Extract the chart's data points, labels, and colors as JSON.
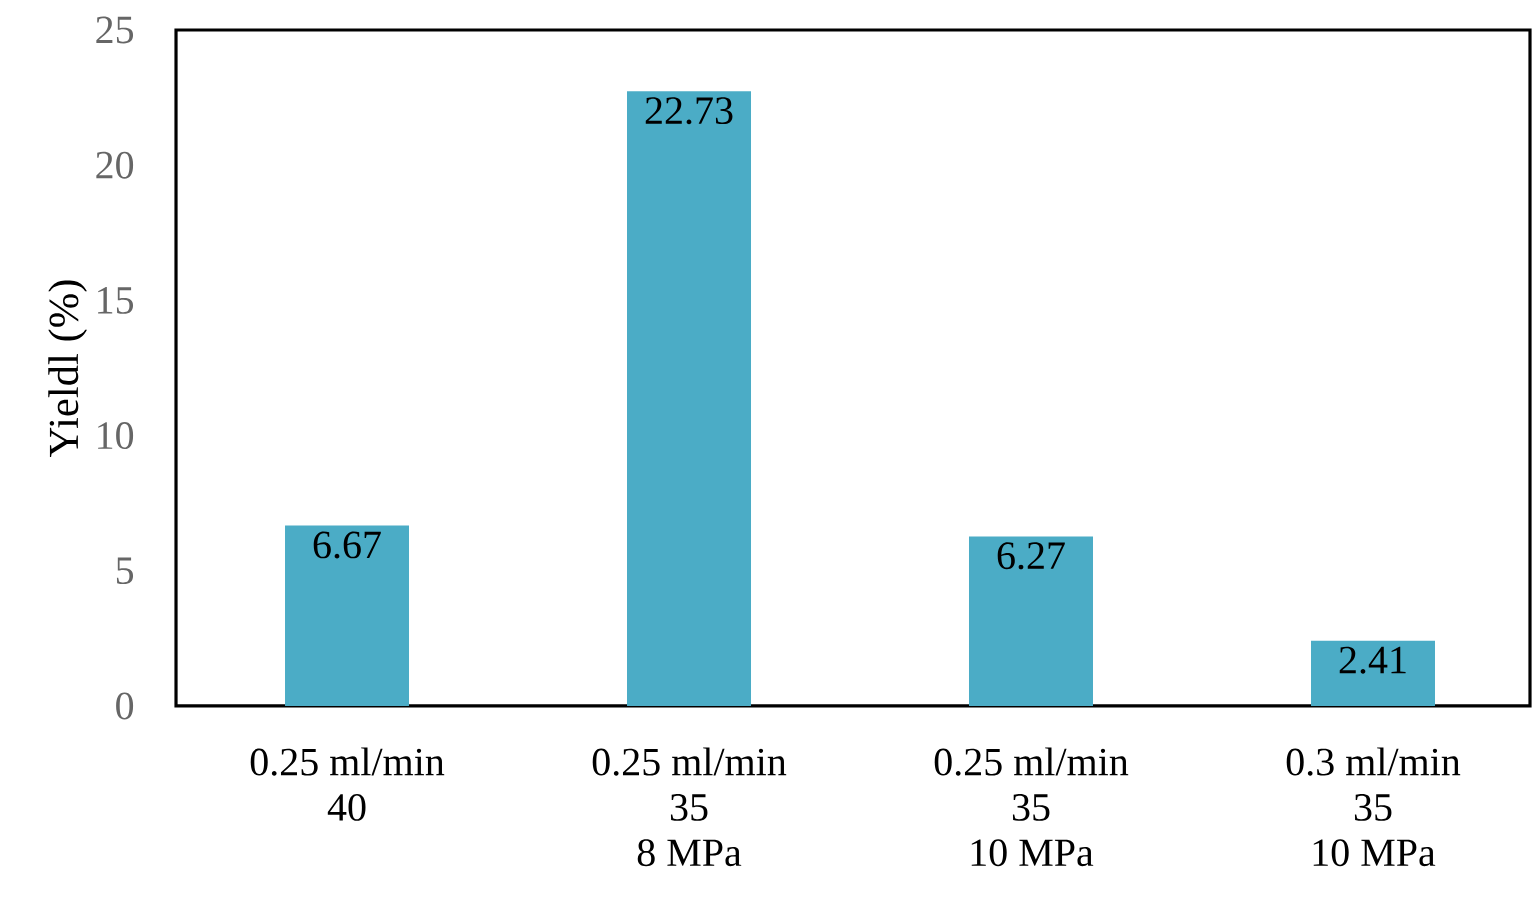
{
  "chart_data": {
    "type": "bar",
    "ylabel": "Yieldl (%)",
    "categories": [
      "0.25 ml/min\n40",
      "0.25 ml/min\n35\n8 MPa",
      "0.25 ml/min\n35\n10 MPa",
      "0.3 ml/min\n35\n10 MPa"
    ],
    "values": [
      6.67,
      22.73,
      6.27,
      2.41
    ],
    "color": "#4bacc6",
    "data_labels": true,
    "ylim": [
      0,
      25
    ],
    "yticks": [
      0,
      5,
      10,
      15,
      20,
      25
    ]
  }
}
